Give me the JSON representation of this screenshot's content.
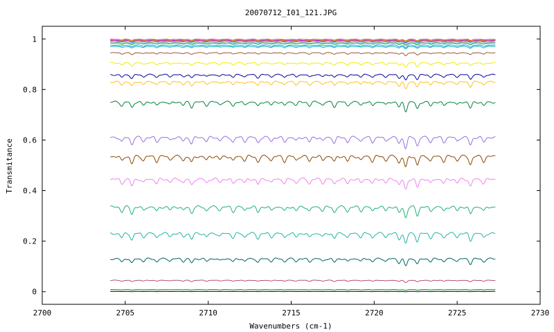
{
  "chart_data": {
    "type": "line",
    "title": "20070712_I01_121.JPG",
    "xlabel": "Wavenumbers (cm-1)",
    "ylabel": "Transmitance",
    "xlim": [
      2700,
      2730
    ],
    "ylim": [
      -0.05,
      1.05
    ],
    "x_ticks": [
      "2700",
      "2705",
      "2710",
      "2715",
      "2720",
      "2725",
      "2730"
    ],
    "y_ticks": [
      "0",
      "0.2",
      "0.4",
      "0.6",
      "0.8",
      "1"
    ],
    "x_range": [
      2704.1,
      2727.3
    ],
    "grid": false,
    "legend": "none",
    "series": [
      {
        "color": "#ff0000",
        "baseline": 0.998,
        "depth": 0.004
      },
      {
        "color": "#00aa00",
        "baseline": 0.997,
        "depth": 0.004
      },
      {
        "color": "#3333ff",
        "baseline": 0.995,
        "depth": 0.004
      },
      {
        "color": "#ff00ff",
        "baseline": 0.993,
        "depth": 0.005
      },
      {
        "color": "#00c0c0",
        "baseline": 0.99,
        "depth": 0.005
      },
      {
        "color": "#888888",
        "baseline": 0.985,
        "depth": 0.006
      },
      {
        "color": "#ffa000",
        "baseline": 0.996,
        "depth": 0.004
      },
      {
        "color": "#33cc66",
        "baseline": 0.982,
        "depth": 0.006
      },
      {
        "color": "#4488ff",
        "baseline": 0.975,
        "depth": 0.007
      },
      {
        "color": "#00bbbb",
        "baseline": 0.97,
        "depth": 0.007
      },
      {
        "color": "#a0522d",
        "baseline": 0.945,
        "depth": 0.008
      },
      {
        "color": "#eeee00",
        "baseline": 0.905,
        "depth": 0.012
      },
      {
        "color": "#000099",
        "baseline": 0.858,
        "depth": 0.016
      },
      {
        "color": "#ffc020",
        "baseline": 0.83,
        "depth": 0.02
      },
      {
        "color": "#008040",
        "baseline": 0.75,
        "depth": 0.025
      },
      {
        "color": "#9370db",
        "baseline": 0.61,
        "depth": 0.03
      },
      {
        "color": "#8b4500",
        "baseline": 0.535,
        "depth": 0.032
      },
      {
        "color": "#ee82ee",
        "baseline": 0.445,
        "depth": 0.03
      },
      {
        "color": "#20b070",
        "baseline": 0.335,
        "depth": 0.03
      },
      {
        "color": "#20b2aa",
        "baseline": 0.23,
        "depth": 0.028
      },
      {
        "color": "#006060",
        "baseline": 0.13,
        "depth": 0.02
      },
      {
        "color": "#b05070",
        "baseline": 0.045,
        "depth": 0.006
      },
      {
        "color": "#008000",
        "baseline": 0.008,
        "depth": 0.002
      },
      {
        "color": "#000080",
        "baseline": 0.001,
        "depth": 0.001
      }
    ]
  }
}
